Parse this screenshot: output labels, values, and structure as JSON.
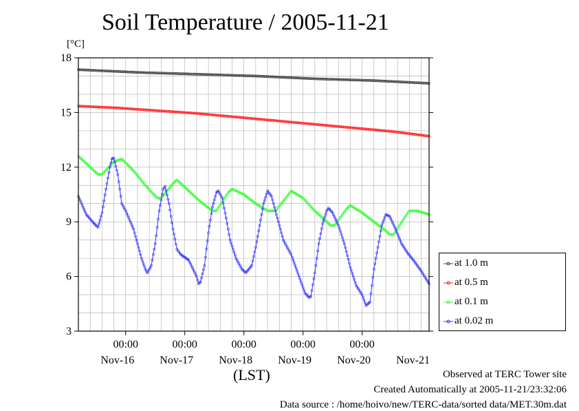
{
  "chart_data": {
    "type": "line",
    "title": "Soil Temperature / 2005-11-21",
    "y_unit": "[°C]",
    "xlabel": "(LST)",
    "ylim": [
      3,
      18
    ],
    "y_ticks": [
      3,
      6,
      9,
      12,
      15,
      18
    ],
    "x_range_hours": [
      -10,
      168
    ],
    "x_time_ticks": [
      {
        "hour": 14,
        "label": "00:00"
      },
      {
        "hour": 44,
        "label": "00:00"
      },
      {
        "hour": 74,
        "label": "00:00"
      },
      {
        "hour": 104,
        "label": "00:00"
      },
      {
        "hour": 134,
        "label": "00:00"
      }
    ],
    "x_day_labels": [
      {
        "hour": 14,
        "label": "Nov-16"
      },
      {
        "hour": 44,
        "label": "Nov-17"
      },
      {
        "hour": 74,
        "label": "Nov-18"
      },
      {
        "hour": 104,
        "label": "Nov-19"
      },
      {
        "hour": 134,
        "label": "Nov-20"
      },
      {
        "hour": 164,
        "label": "Nov-21"
      }
    ],
    "grid": true,
    "legend_placement": "right, below plot top",
    "series": [
      {
        "name": "at 1.0 m",
        "color": "#444444",
        "points": [
          [
            -10,
            17.35
          ],
          [
            20,
            17.2
          ],
          [
            50,
            17.1
          ],
          [
            80,
            17.0
          ],
          [
            110,
            16.85
          ],
          [
            140,
            16.75
          ],
          [
            168,
            16.6
          ]
        ]
      },
      {
        "name": "at 0.5 m",
        "color": "#ff2020",
        "points": [
          [
            -10,
            15.35
          ],
          [
            10,
            15.25
          ],
          [
            30,
            15.1
          ],
          [
            50,
            14.95
          ],
          [
            70,
            14.75
          ],
          [
            90,
            14.55
          ],
          [
            110,
            14.35
          ],
          [
            130,
            14.15
          ],
          [
            150,
            13.95
          ],
          [
            168,
            13.7
          ]
        ]
      },
      {
        "name": "at 0.1 m",
        "color": "#33ff33",
        "points": [
          [
            -10,
            12.6
          ],
          [
            -5,
            12.1
          ],
          [
            0,
            11.6
          ],
          [
            2,
            11.6
          ],
          [
            8,
            12.3
          ],
          [
            12,
            12.45
          ],
          [
            18,
            11.8
          ],
          [
            24,
            11.0
          ],
          [
            30,
            10.3
          ],
          [
            32,
            10.3
          ],
          [
            38,
            11.1
          ],
          [
            40,
            11.3
          ],
          [
            46,
            10.7
          ],
          [
            52,
            10.1
          ],
          [
            58,
            9.6
          ],
          [
            60,
            9.6
          ],
          [
            66,
            10.6
          ],
          [
            68,
            10.8
          ],
          [
            74,
            10.5
          ],
          [
            80,
            10.0
          ],
          [
            86,
            9.6
          ],
          [
            90,
            9.6
          ],
          [
            96,
            10.4
          ],
          [
            98,
            10.7
          ],
          [
            104,
            10.3
          ],
          [
            110,
            9.6
          ],
          [
            116,
            9.0
          ],
          [
            118,
            8.8
          ],
          [
            120,
            8.8
          ],
          [
            126,
            9.7
          ],
          [
            128,
            9.9
          ],
          [
            134,
            9.5
          ],
          [
            140,
            9.0
          ],
          [
            146,
            8.5
          ],
          [
            148,
            8.3
          ],
          [
            150,
            8.3
          ],
          [
            156,
            9.3
          ],
          [
            158,
            9.6
          ],
          [
            162,
            9.6
          ],
          [
            168,
            9.4
          ]
        ]
      },
      {
        "name": "at 0.02 m",
        "color": "#3333ff",
        "points": [
          [
            -10,
            10.4
          ],
          [
            -6,
            9.4
          ],
          [
            -2,
            8.9
          ],
          [
            0,
            8.7
          ],
          [
            2,
            9.5
          ],
          [
            4,
            10.8
          ],
          [
            6,
            12.0
          ],
          [
            7,
            12.45
          ],
          [
            8,
            12.5
          ],
          [
            10,
            11.6
          ],
          [
            12,
            10.0
          ],
          [
            14,
            9.6
          ],
          [
            18,
            8.6
          ],
          [
            20,
            7.8
          ],
          [
            22,
            7.0
          ],
          [
            24,
            6.4
          ],
          [
            25,
            6.2
          ],
          [
            27,
            6.6
          ],
          [
            29,
            7.8
          ],
          [
            31,
            9.6
          ],
          [
            33,
            10.8
          ],
          [
            34,
            10.95
          ],
          [
            36,
            10.0
          ],
          [
            38,
            8.6
          ],
          [
            40,
            7.5
          ],
          [
            42,
            7.2
          ],
          [
            46,
            6.9
          ],
          [
            50,
            6.0
          ],
          [
            51,
            5.6
          ],
          [
            52,
            5.7
          ],
          [
            54,
            6.6
          ],
          [
            56,
            8.4
          ],
          [
            58,
            9.8
          ],
          [
            60,
            10.6
          ],
          [
            61,
            10.7
          ],
          [
            63,
            10.3
          ],
          [
            65,
            9.2
          ],
          [
            67,
            8.0
          ],
          [
            70,
            7.0
          ],
          [
            73,
            6.4
          ],
          [
            75,
            6.2
          ],
          [
            78,
            6.6
          ],
          [
            80,
            7.6
          ],
          [
            82,
            8.8
          ],
          [
            84,
            10.0
          ],
          [
            86,
            10.7
          ],
          [
            88,
            10.4
          ],
          [
            91,
            9.2
          ],
          [
            94,
            8.0
          ],
          [
            98,
            7.2
          ],
          [
            102,
            6.0
          ],
          [
            105,
            5.1
          ],
          [
            107,
            4.85
          ],
          [
            108,
            4.9
          ],
          [
            110,
            6.2
          ],
          [
            112,
            7.8
          ],
          [
            114,
            8.9
          ],
          [
            116,
            9.6
          ],
          [
            117,
            9.75
          ],
          [
            119,
            9.5
          ],
          [
            122,
            8.8
          ],
          [
            125,
            7.8
          ],
          [
            128,
            6.5
          ],
          [
            131,
            5.5
          ],
          [
            134,
            5.0
          ],
          [
            136,
            4.4
          ],
          [
            138,
            4.6
          ],
          [
            140,
            6.4
          ],
          [
            142,
            7.6
          ],
          [
            144,
            8.8
          ],
          [
            146,
            9.4
          ],
          [
            148,
            9.3
          ],
          [
            151,
            8.6
          ],
          [
            154,
            7.8
          ],
          [
            157,
            7.3
          ],
          [
            160,
            6.9
          ],
          [
            164,
            6.3
          ],
          [
            168,
            5.6
          ]
        ]
      }
    ]
  },
  "legend": {
    "items": [
      {
        "label": "at 1.0 m",
        "color": "#444444"
      },
      {
        "label": "at 0.5 m",
        "color": "#ff2020"
      },
      {
        "label": "at 0.1 m",
        "color": "#33ff33"
      },
      {
        "label": "at 0.02 m",
        "color": "#3333ff"
      }
    ]
  },
  "footer": {
    "line1": "Observed at TERC Tower site",
    "line2": "Created Automatically at 2005-11-21/23:32:06",
    "line3": "Data source : /home/hoivo/new/TERC-data/sorted  data/MET.30m.dat"
  }
}
